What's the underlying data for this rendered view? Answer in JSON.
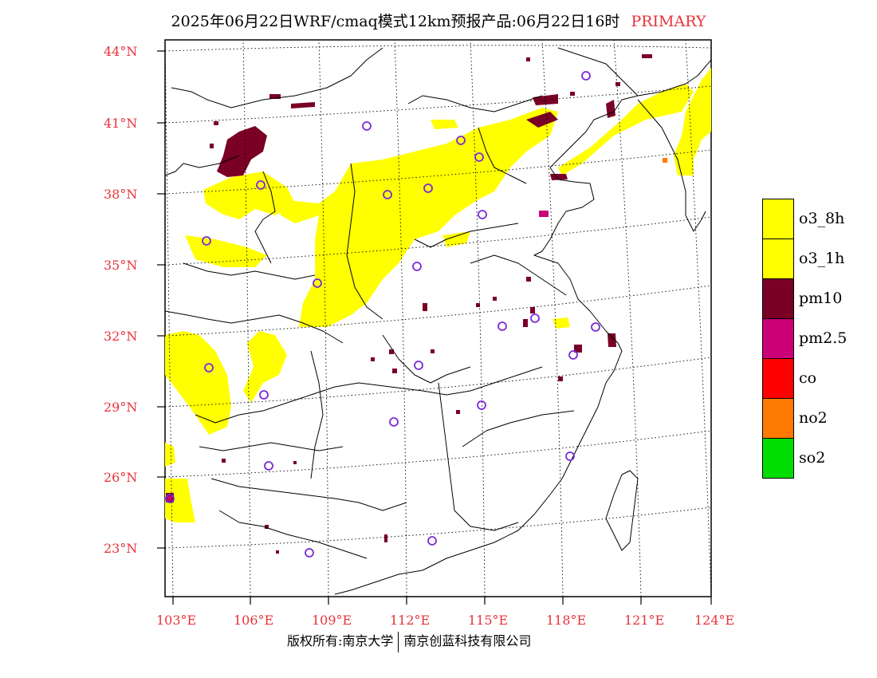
{
  "title": "2025年06月22日WRF/cmaq模式12km预报产品:06月22日16时",
  "mode": "PRIMARY",
  "lat_labels": [
    "44°N",
    "41°N",
    "38°N",
    "35°N",
    "32°N",
    "29°N",
    "26°N",
    "23°N"
  ],
  "lon_labels": [
    "103°E",
    "106°E",
    "109°E",
    "112°E",
    "115°E",
    "118°E",
    "121°E",
    "124°E"
  ],
  "legend": [
    {
      "label": "o3_8h",
      "color": "#ffff00"
    },
    {
      "label": "o3_1h",
      "color": "#ffff00"
    },
    {
      "label": "pm10",
      "color": "#7a0026"
    },
    {
      "label": "pm2.5",
      "color": "#cc0077"
    },
    {
      "label": "co",
      "color": "#ff0000"
    },
    {
      "label": "no2",
      "color": "#ff7a00"
    },
    {
      "label": "so2",
      "color": "#00dd00"
    }
  ],
  "footer": {
    "left": "版权所有:南京大学",
    "right": "南京创蓝科技有限公司"
  }
}
